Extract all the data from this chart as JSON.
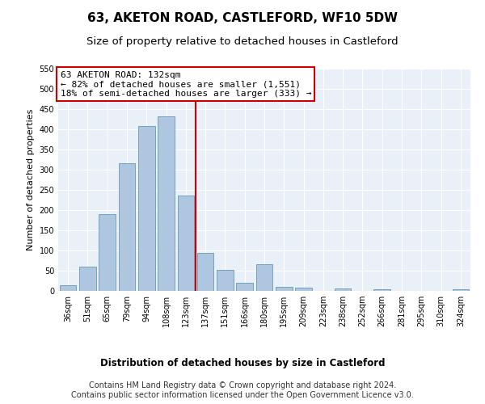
{
  "title": "63, AKETON ROAD, CASTLEFORD, WF10 5DW",
  "subtitle": "Size of property relative to detached houses in Castleford",
  "xlabel": "Distribution of detached houses by size in Castleford",
  "ylabel": "Number of detached properties",
  "categories": [
    "36sqm",
    "51sqm",
    "65sqm",
    "79sqm",
    "94sqm",
    "108sqm",
    "123sqm",
    "137sqm",
    "151sqm",
    "166sqm",
    "180sqm",
    "195sqm",
    "209sqm",
    "223sqm",
    "238sqm",
    "252sqm",
    "266sqm",
    "281sqm",
    "295sqm",
    "310sqm",
    "324sqm"
  ],
  "values": [
    14,
    61,
    190,
    315,
    408,
    432,
    235,
    95,
    52,
    20,
    66,
    11,
    9,
    0,
    6,
    0,
    5,
    0,
    0,
    0,
    5
  ],
  "bar_color": "#aec6df",
  "bar_edge_color": "#6699bb",
  "vline_x": 6.5,
  "annotation_text1": "63 AKETON ROAD: 132sqm",
  "annotation_text2": "← 82% of detached houses are smaller (1,551)",
  "annotation_text3": "18% of semi-detached houses are larger (333) →",
  "annotation_box_color": "#ffffff",
  "annotation_box_edge_color": "#cc0000",
  "vline_color": "#cc0000",
  "ylim": [
    0,
    550
  ],
  "yticks": [
    0,
    50,
    100,
    150,
    200,
    250,
    300,
    350,
    400,
    450,
    500,
    550
  ],
  "footer_text": "Contains HM Land Registry data © Crown copyright and database right 2024.\nContains public sector information licensed under the Open Government Licence v3.0.",
  "bg_color": "#ffffff",
  "plot_bg_color": "#eaf0f8",
  "grid_color": "#ffffff",
  "title_fontsize": 11,
  "subtitle_fontsize": 9.5,
  "axis_label_fontsize": 8.5,
  "tick_fontsize": 7,
  "footer_fontsize": 7,
  "ylabel_fontsize": 8
}
